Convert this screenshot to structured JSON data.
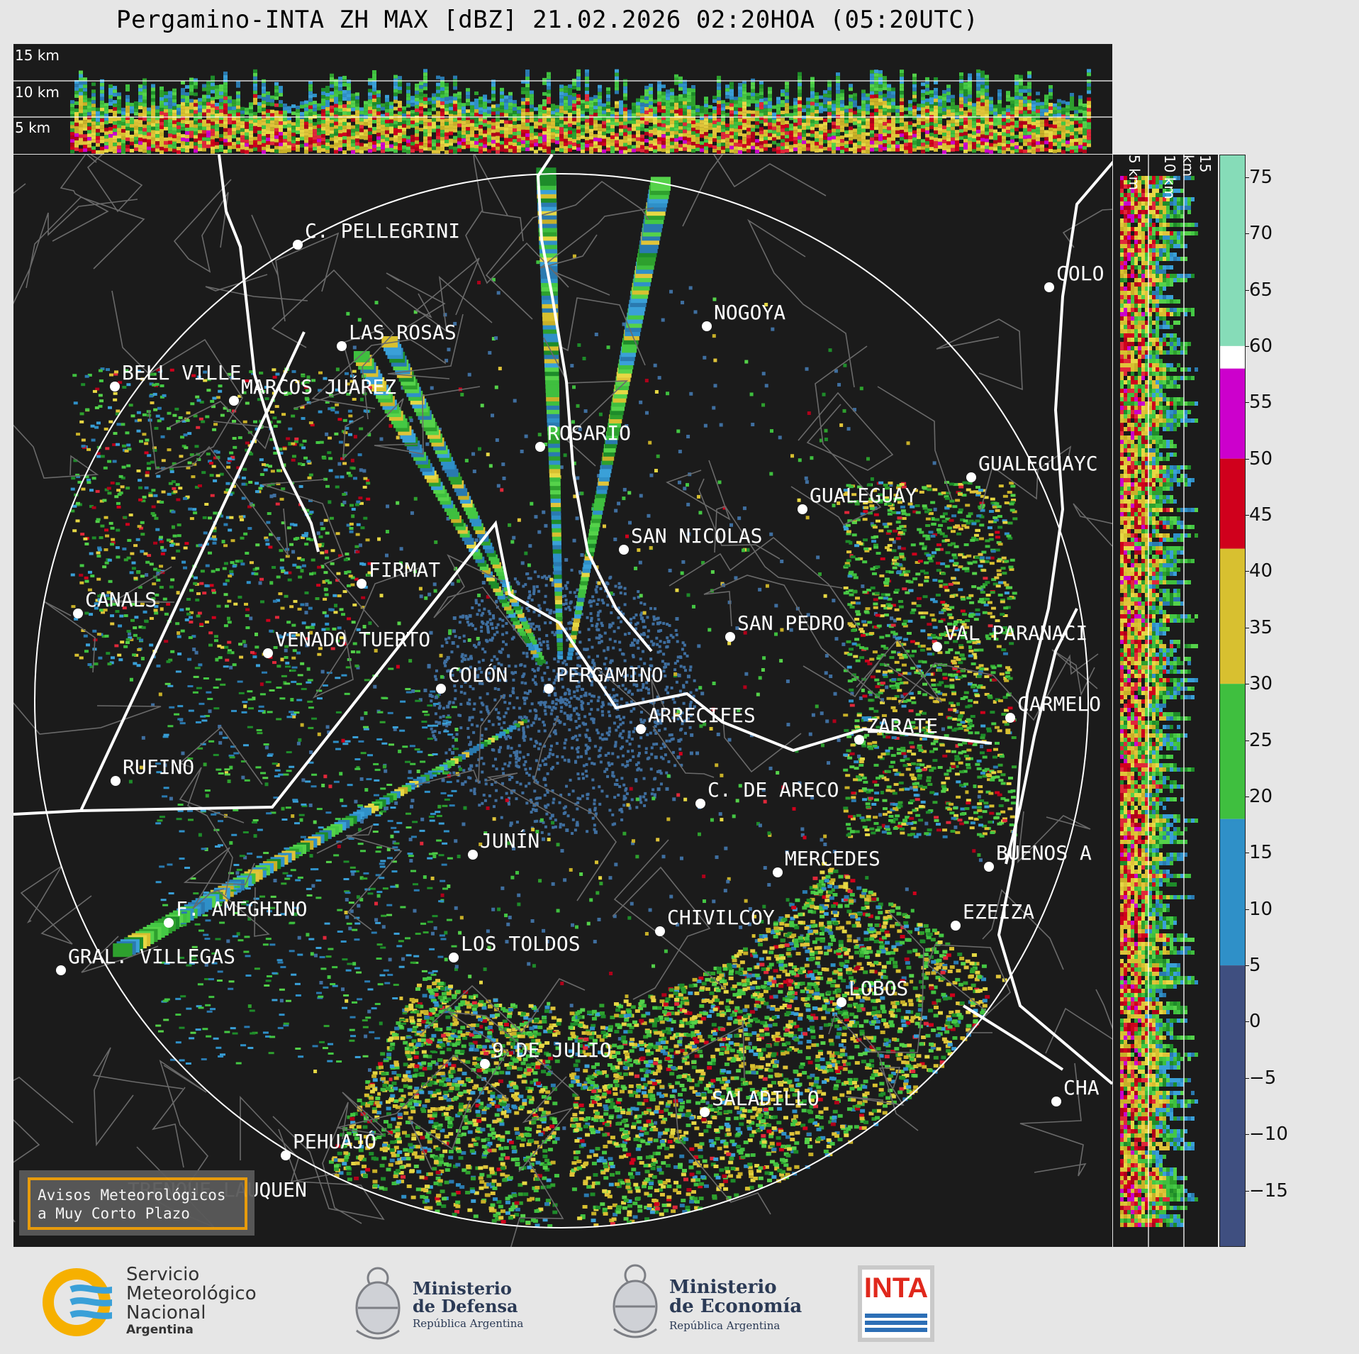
{
  "title": "Pergamino-INTA ZH MAX [dBZ] 21.02.2026 02:20HOA (05:20UTC)",
  "height_labels": {
    "h15": "15 km",
    "h10": "10 km",
    "h5": "5 km"
  },
  "side_height_labels": {
    "h5": "5 km",
    "h10": "10 km",
    "h15": "15 km"
  },
  "colorbar": {
    "unit": "dBZ",
    "ticks": [
      "75",
      "70",
      "65",
      "60",
      "55",
      "50",
      "45",
      "40",
      "35",
      "30",
      "25",
      "20",
      "15",
      "10",
      "5",
      "0",
      "−5",
      "−10",
      "−15"
    ],
    "tick_values": [
      75,
      70,
      65,
      60,
      55,
      50,
      45,
      40,
      35,
      30,
      25,
      20,
      15,
      10,
      5,
      0,
      -5,
      -10,
      -15
    ],
    "range": [
      -20,
      77
    ],
    "bands": [
      {
        "from": 60,
        "to": 77,
        "color": "#86dcb8"
      },
      {
        "from": 58,
        "to": 60,
        "color": "#ffffff"
      },
      {
        "from": 50,
        "to": 58,
        "color": "#cc00cc"
      },
      {
        "from": 42,
        "to": 50,
        "color": "#d0001c"
      },
      {
        "from": 30,
        "to": 42,
        "color": "#d8c030"
      },
      {
        "from": 18,
        "to": 30,
        "color": "#3fbf3f"
      },
      {
        "from": 5,
        "to": 18,
        "color": "#2f90c8"
      },
      {
        "from": -20,
        "to": 5,
        "color": "#3f4f80"
      }
    ]
  },
  "cities": [
    {
      "name": "C. PELLEGRINI"
    },
    {
      "name": "LAS ROSAS"
    },
    {
      "name": "NOGOYA"
    },
    {
      "name": "BELL VILLE"
    },
    {
      "name": "MARCOS JUÁREZ"
    },
    {
      "name": "COLO"
    },
    {
      "name": "ROSARIO"
    },
    {
      "name": "GUALEGUAYC"
    },
    {
      "name": "GUALEGUAY"
    },
    {
      "name": "SAN NICOLAS"
    },
    {
      "name": "FIRMAT"
    },
    {
      "name": "CANALS"
    },
    {
      "name": "SAN PEDRO"
    },
    {
      "name": "VAL PARANACI"
    },
    {
      "name": "VENADO TUERTO"
    },
    {
      "name": "COLÓN"
    },
    {
      "name": "PERGAMINO"
    },
    {
      "name": "CARMELO"
    },
    {
      "name": "ARRECIFES"
    },
    {
      "name": "ZARATE"
    },
    {
      "name": "RUFINO"
    },
    {
      "name": "C. DE ARECO"
    },
    {
      "name": "JUNÍN"
    },
    {
      "name": "BUENOS A"
    },
    {
      "name": "MERCEDES"
    },
    {
      "name": "F. AMEGHINO"
    },
    {
      "name": "EZEIZA"
    },
    {
      "name": "CHIVILCOY"
    },
    {
      "name": "GRAL. VILLEGAS"
    },
    {
      "name": "LOS TOLDOS"
    },
    {
      "name": "LOBOS"
    },
    {
      "name": "9 DE JULIO"
    },
    {
      "name": "CHA"
    },
    {
      "name": "SALADILLO"
    },
    {
      "name": "PEHUAJÓ"
    },
    {
      "name": "TRENQUE LAUQUEN"
    }
  ],
  "aviso": "Avisos Meteorológicos\na Muy Corto Plazo",
  "logos": {
    "smn": {
      "line1": "Servicio",
      "line2": "Meteorológico",
      "line3": "Nacional",
      "line4": "Argentina"
    },
    "defensa": {
      "line1": "Ministerio",
      "line2": "de Defensa",
      "line3": "República Argentina"
    },
    "economia": {
      "line1": "Ministerio",
      "line2": "de Economía",
      "line3": "República Argentina"
    },
    "inta": "INTA"
  }
}
